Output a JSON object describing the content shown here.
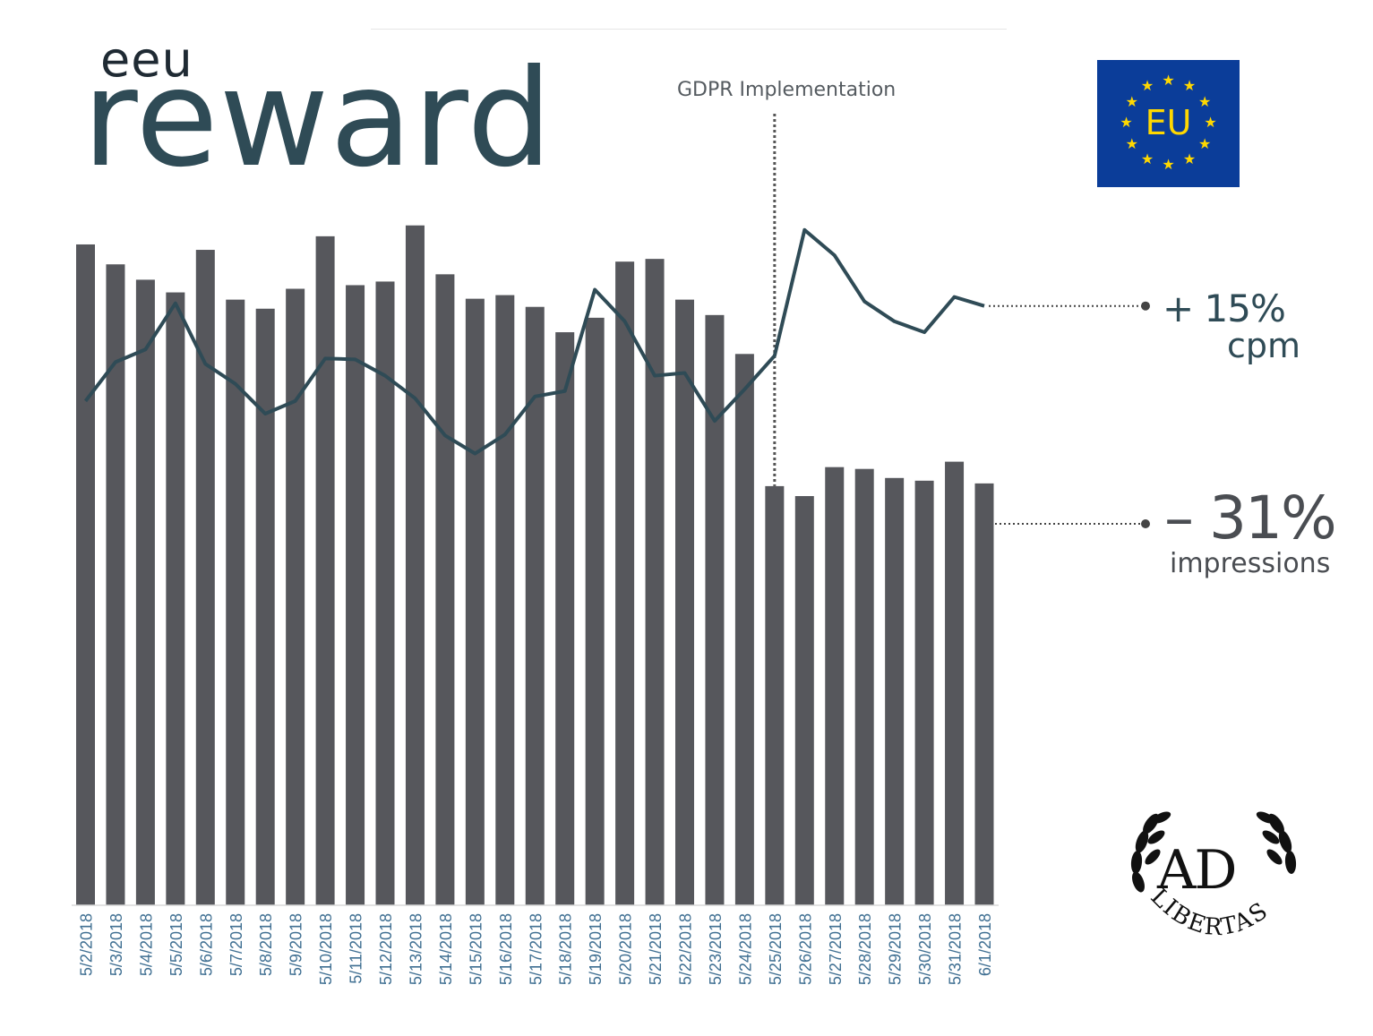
{
  "brand": {
    "small": "eeu",
    "main": "reward"
  },
  "flag": {
    "text": "EU",
    "icon": "eu-flag-icon",
    "background": "#0b3d99",
    "star_color": "#ffd800"
  },
  "logo": {
    "text": "AD",
    "arc_text": "LIBERTAS",
    "icon": "laurel-wreath-icon"
  },
  "annotations": {
    "gdpr": "GDPR Implementation",
    "cpm_change": "+ 15%",
    "cpm_label": "cpm",
    "impressions_change": "– 31%",
    "impressions_label": "impressions"
  },
  "colors": {
    "bars": "#56575c",
    "line": "#2f4b56",
    "marker": "#444444"
  },
  "chart_data": {
    "type": "bar",
    "categories": [
      "5/2/2018",
      "5/3/2018",
      "5/4/2018",
      "5/5/2018",
      "5/6/2018",
      "5/7/2018",
      "5/8/2018",
      "5/9/2018",
      "5/10/2018",
      "5/11/2018",
      "5/12/2018",
      "5/13/2018",
      "5/14/2018",
      "5/15/2018",
      "5/16/2018",
      "5/17/2018",
      "5/18/2018",
      "5/19/2018",
      "5/20/2018",
      "5/21/2018",
      "5/22/2018",
      "5/23/2018",
      "5/24/2018",
      "5/25/2018",
      "5/26/2018",
      "5/27/2018",
      "5/28/2018",
      "5/29/2018",
      "5/30/2018",
      "5/31/2018",
      "6/1/2018"
    ],
    "series": [
      {
        "type": "bar",
        "values": [
          730,
          708,
          691,
          677,
          724,
          669,
          659,
          681,
          739,
          685,
          689,
          751,
          697,
          670,
          674,
          661,
          633,
          649,
          711,
          714,
          669,
          652,
          609,
          463,
          452,
          484,
          482,
          472,
          469,
          490,
          466
        ]
      },
      {
        "type": "line",
        "values": [
          557,
          600,
          614,
          665,
          598,
          576,
          543,
          557,
          604,
          603,
          585,
          560,
          519,
          499,
          520,
          562,
          568,
          680,
          645,
          585,
          588,
          535,
          570,
          607,
          746,
          718,
          667,
          645,
          633,
          672,
          662
        ]
      }
    ],
    "ylim": [
      0,
      1000
    ],
    "grid": false,
    "legend": "none",
    "event_marker": {
      "x": "5/25/2018",
      "label": "GDPR Implementation"
    }
  }
}
